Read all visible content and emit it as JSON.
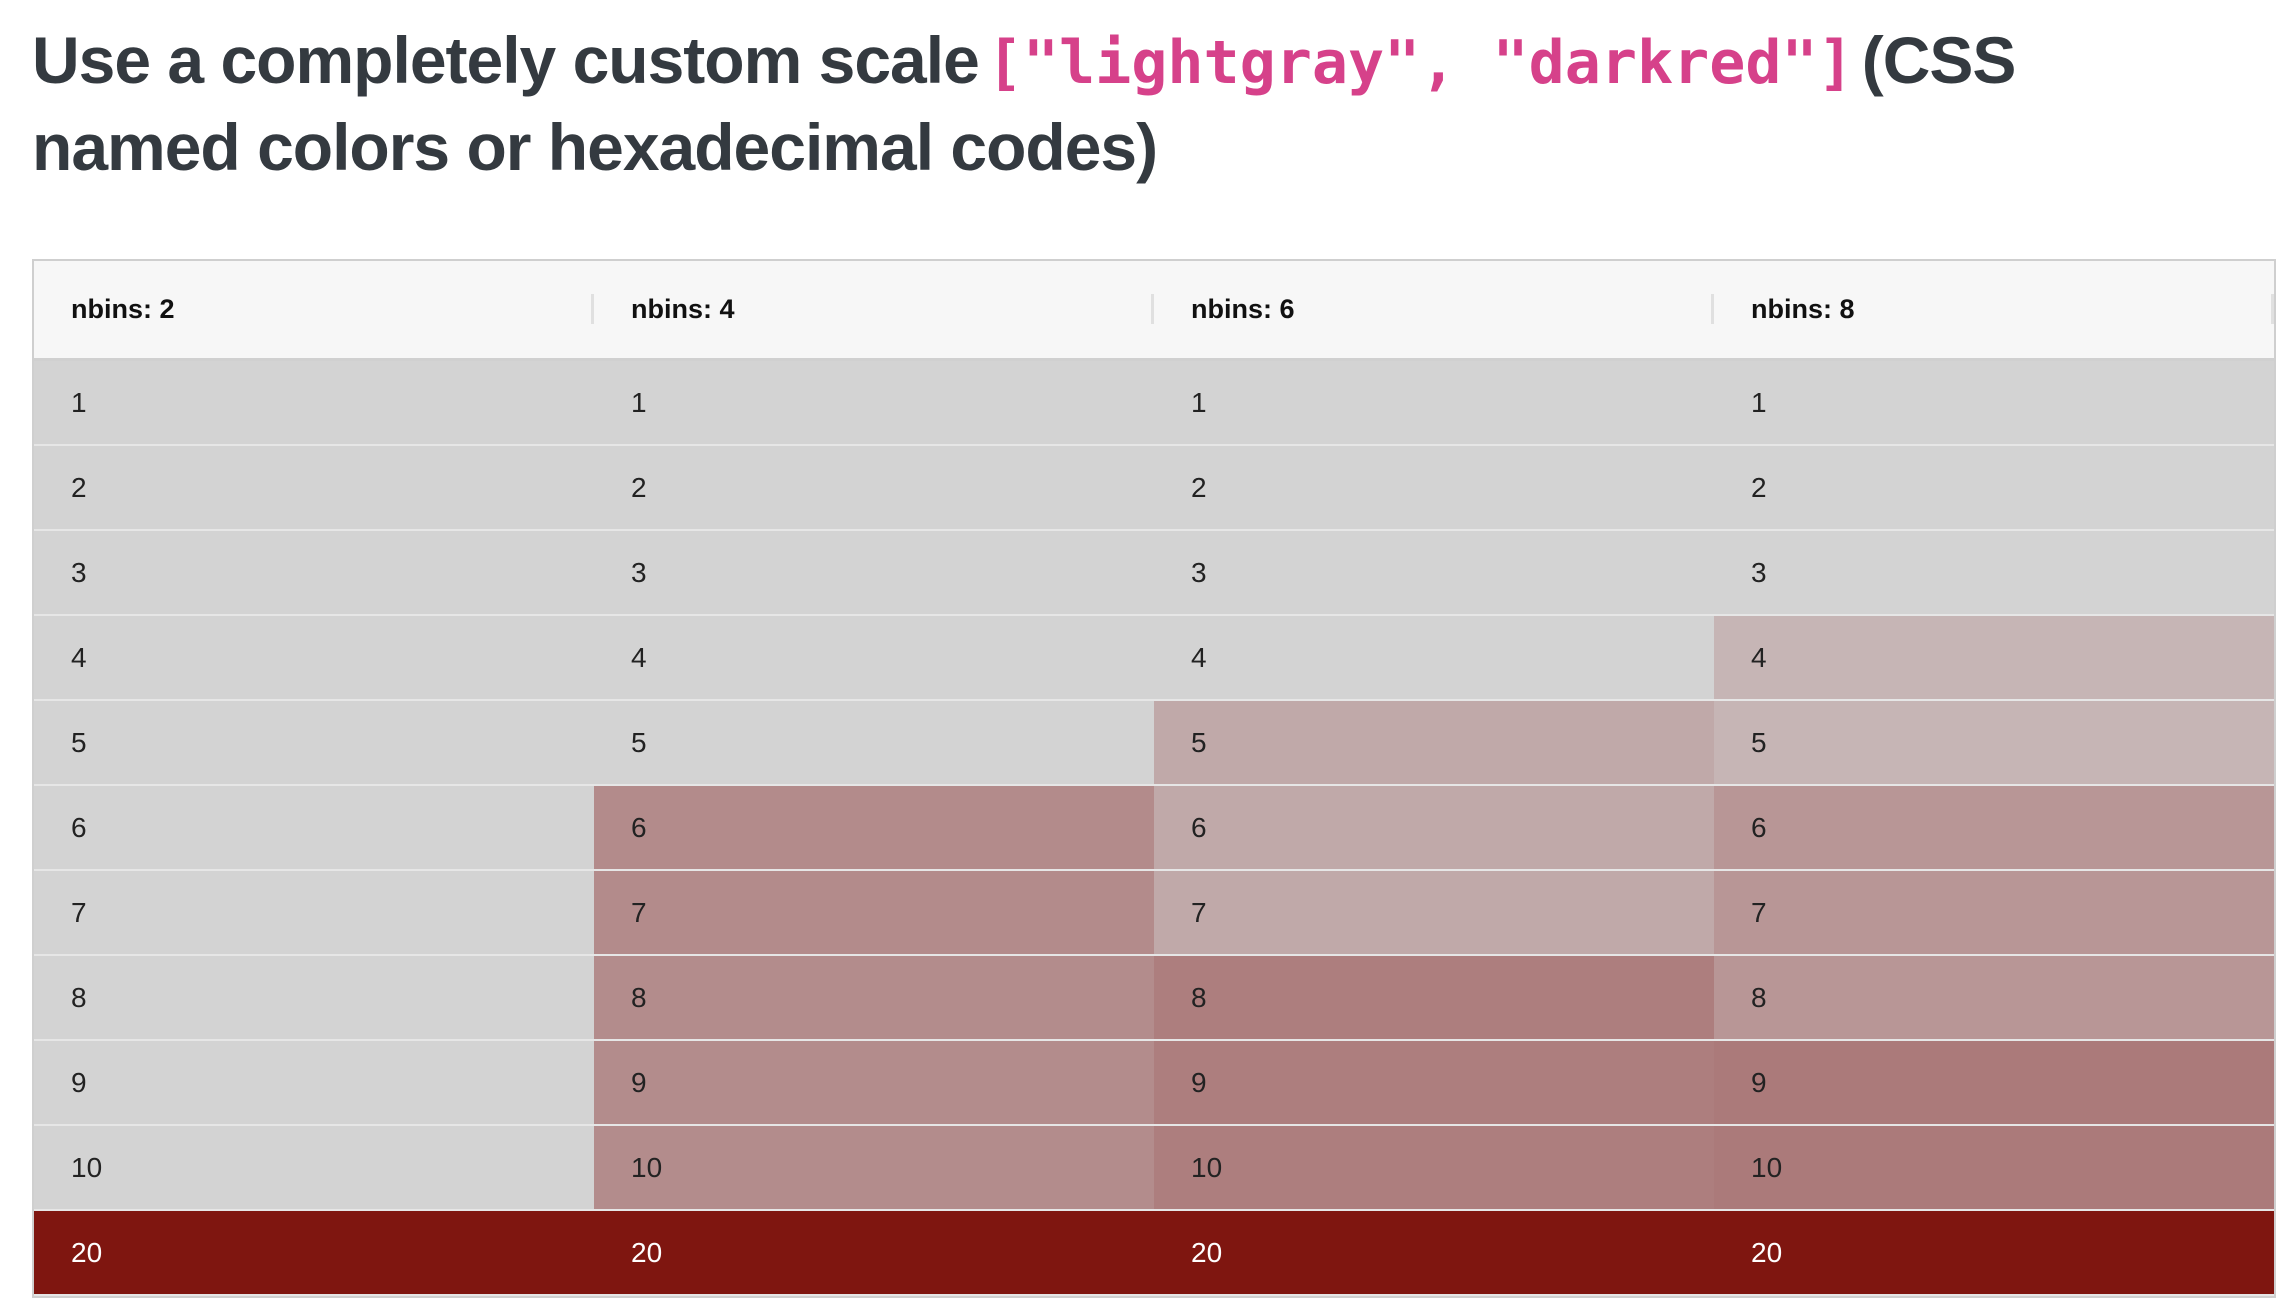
{
  "header": {
    "title_start": "Use a completely custom scale",
    "title_code": "[\"lightgray\", \"darkred\"]",
    "title_end": "(CSS named colors or hexadecimal codes)"
  },
  "table": {
    "columns": [
      "nbins: 2",
      "nbins: 4",
      "nbins: 6",
      "nbins: 8"
    ],
    "rows": [
      [
        1,
        1,
        1,
        1
      ],
      [
        2,
        2,
        2,
        2
      ],
      [
        3,
        3,
        3,
        3
      ],
      [
        4,
        4,
        4,
        4
      ],
      [
        5,
        5,
        5,
        5
      ],
      [
        6,
        6,
        6,
        6
      ],
      [
        7,
        7,
        7,
        7
      ],
      [
        8,
        8,
        8,
        8
      ],
      [
        9,
        9,
        9,
        9
      ],
      [
        10,
        10,
        10,
        10
      ],
      [
        20,
        20,
        20,
        20
      ]
    ],
    "cell_colors": [
      [
        "#d3d3d3",
        "#d3d3d3",
        "#d3d3d3",
        "#d3d3d3"
      ],
      [
        "#d3d3d3",
        "#d3d3d3",
        "#d3d3d3",
        "#d3d3d3"
      ],
      [
        "#d3d3d3",
        "#d3d3d3",
        "#d3d3d3",
        "#d3d3d3"
      ],
      [
        "#d3d3d3",
        "#d3d3d3",
        "#d3d3d3",
        "#c6b5b5"
      ],
      [
        "#d3d3d3",
        "#d3d3d3",
        "#c0a9a9",
        "#c6b5b5"
      ],
      [
        "#d3d3d3",
        "#b38b8b",
        "#c0a9a9",
        "#b89696"
      ],
      [
        "#d3d3d3",
        "#b38b8b",
        "#c0a9a9",
        "#b89696"
      ],
      [
        "#d3d3d3",
        "#b38c8c",
        "#ad7e7e",
        "#b89696"
      ],
      [
        "#d3d3d3",
        "#b38c8c",
        "#ad7e7e",
        "#ab7a7a"
      ],
      [
        "#d3d3d3",
        "#b38c8c",
        "#ad7e7e",
        "#ab7a7a"
      ],
      [
        "#7f1610",
        "#7f1610",
        "#7f1610",
        "#7f1610"
      ]
    ]
  }
}
